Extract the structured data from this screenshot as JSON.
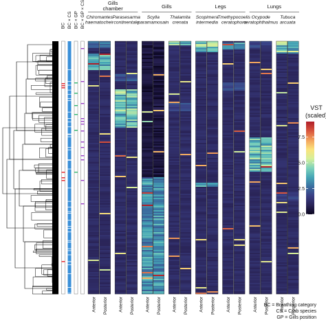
{
  "chart_data": {
    "type": "heatmap",
    "legend": {
      "title_lines": [
        "VST",
        "(scaled)"
      ],
      "ticks": [
        0.0,
        2.5,
        5.0,
        7.5
      ],
      "range": [
        0,
        9
      ],
      "colors": [
        "#0b0620",
        "#2a2458",
        "#3a3f84",
        "#3b6fa0",
        "#46a6b6",
        "#7fd3bb",
        "#d6ef9a",
        "#fbe37c",
        "#f3a25c",
        "#d8553d",
        "#b01d28"
      ]
    },
    "annotation_columns": [
      "BC",
      "BC × CS",
      "BC × GP",
      "BC × GP × CS"
    ],
    "annotation_colors": {
      "BC": "#e8343a",
      "BC × CS": "#3a8fd8",
      "BC × GP": "#2db36b",
      "BC × GP × CS": "#9b3fc8"
    },
    "categories": [
      {
        "title": [
          "Gills",
          "chamber"
        ]
      },
      {
        "title": [
          "Gills"
        ]
      },
      {
        "title": [
          "Legs"
        ]
      },
      {
        "title": [
          "Lungs"
        ]
      }
    ],
    "species": [
      {
        "name": [
          "Chiromantes",
          "haematocheir"
        ],
        "category": 0
      },
      {
        "name": [
          "Parasesarma",
          "continentale"
        ],
        "category": 0
      },
      {
        "name": [
          "Scylla",
          "paramamosain"
        ],
        "category": 1
      },
      {
        "name": [
          "Thalamita",
          "crenata"
        ],
        "category": 1
      },
      {
        "name": [
          "Scopimera",
          "intermedia"
        ],
        "category": 2
      },
      {
        "name": [
          "Tmethypocoelis",
          "ceratophora"
        ],
        "category": 2
      },
      {
        "name": [
          "Ocypode",
          "ceratophthalmus"
        ],
        "category": 3
      },
      {
        "name": [
          "Tubuca",
          "arcuata"
        ],
        "category": 3
      }
    ],
    "column_labels": [
      "Anterior",
      "Posterior"
    ],
    "footnotes": [
      "BC = Breathing category",
      "CS = Crab species",
      "GP = Gills position"
    ]
  }
}
